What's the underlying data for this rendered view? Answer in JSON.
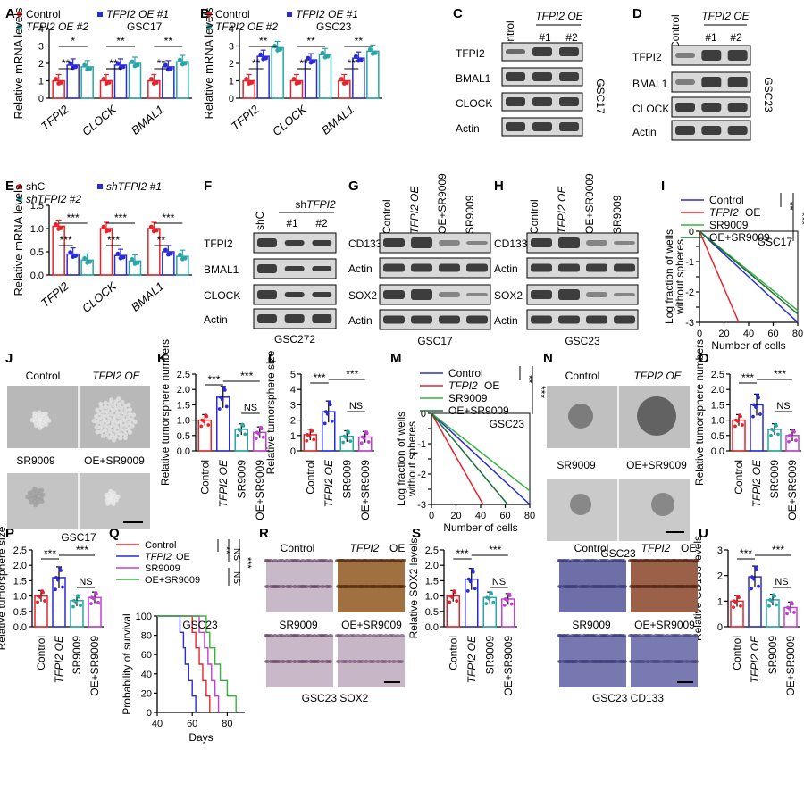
{
  "figure": {
    "panel_labels": [
      "A",
      "B",
      "C",
      "D",
      "E",
      "F",
      "G",
      "H",
      "I",
      "J",
      "K",
      "L",
      "M",
      "N",
      "O",
      "P",
      "Q",
      "R",
      "S",
      "T",
      "U"
    ],
    "colors": {
      "control": "#e8222a",
      "oe1": "#2a2ad6",
      "oe2": "#2aa6a6",
      "blue": "#2a2ad6",
      "red": "#e8222a",
      "green": "#34b33a",
      "darkgreen": "#1e6e3a",
      "purple": "#c040d0",
      "teal": "#2aa6a6"
    }
  },
  "text": {
    "gsc17": "GSC17",
    "gsc23": "GSC23",
    "gsc272": "GSC272",
    "control": "Control",
    "tfpi2oe": "TFPI2 OE",
    "tfpi2": "TFPI2",
    "oe": "OE",
    "oe1": "TFPI2 OE #1",
    "oe2": "TFPI2 OE #2",
    "sh1": "shTFPI2 #1",
    "sh2": "shTFPI2 #2",
    "shc": "shC",
    "shtfpi2": "shTFPI2",
    "num1": "#1",
    "num2": "#2",
    "bmal1": "BMAL1",
    "clock": "CLOCK",
    "actin": "Actin",
    "cd133": "CD133",
    "sox2": "SOX2",
    "sr9009": "SR9009",
    "oesr": "OE+SR9009",
    "rel_mrna": "Relative mRNA levels",
    "log_frac": "Log fraction of wells",
    "without_spheres": "without spheres",
    "num_cells": "Number of cells",
    "rel_tumor_num": "Relative tumorsphere numbers",
    "rel_tumor_size": "Relative tumorsphere size",
    "prob_surv": "Probability of survival",
    "days": "Days",
    "rel_sox2": "Relative SOX2 levels",
    "rel_cd133": "Relative CD133 levels",
    "gsc23_sox2": "GSC23 SOX2",
    "gsc23_cd133": "GSC23 CD133",
    "star1": "*",
    "star2": "**",
    "star3": "***",
    "ns": "NS"
  },
  "chart_data": [
    {
      "panel": "A",
      "type": "bar",
      "ylabel": "Relative mRNA levels",
      "ylim": [
        0,
        4
      ],
      "yticks": [
        0,
        1,
        2,
        3,
        4
      ],
      "categories": [
        "TFPI2",
        "CLOCK",
        "BMAL1"
      ],
      "series": [
        {
          "name": "Control",
          "values": [
            1.0,
            1.0,
            1.0
          ]
        },
        {
          "name": "TFPI2 OE #1",
          "values": [
            1.9,
            1.9,
            1.8
          ]
        },
        {
          "name": "TFPI2 OE #2",
          "values": [
            1.8,
            2.0,
            2.1
          ]
        }
      ],
      "sig": [
        [
          "**",
          "*"
        ],
        [
          "**",
          "**"
        ],
        [
          "**",
          "**"
        ]
      ]
    },
    {
      "panel": "B",
      "type": "bar",
      "ylabel": "Relative mRNA levels",
      "ylim": [
        0,
        4
      ],
      "yticks": [
        0,
        1,
        2,
        3,
        4
      ],
      "categories": [
        "TFPI2",
        "CLOCK",
        "BMAL1"
      ],
      "series": [
        {
          "name": "Control",
          "values": [
            1.0,
            1.0,
            1.0
          ]
        },
        {
          "name": "TFPI2 OE #1",
          "values": [
            2.4,
            2.2,
            2.3
          ]
        },
        {
          "name": "TFPI2 OE #2",
          "values": [
            2.9,
            2.5,
            2.7
          ]
        }
      ],
      "sig": [
        [
          "**",
          "**"
        ],
        [
          "**",
          "**"
        ],
        [
          "**",
          "**"
        ]
      ]
    },
    {
      "panel": "E",
      "type": "bar",
      "ylabel": "Relative mRNA levels",
      "ylim": [
        0,
        1.5
      ],
      "yticks": [
        0.0,
        0.5,
        1.0,
        1.5
      ],
      "categories": [
        "TFPI2",
        "CLOCK",
        "BMAL1"
      ],
      "series": [
        {
          "name": "shC",
          "values": [
            1.05,
            1.0,
            1.0
          ]
        },
        {
          "name": "shTFPI2 #1",
          "values": [
            0.45,
            0.42,
            0.5
          ]
        },
        {
          "name": "shTFPI2 #2",
          "values": [
            0.32,
            0.3,
            0.4
          ]
        }
      ],
      "sig": [
        [
          "***",
          "***"
        ],
        [
          "***",
          "***"
        ],
        [
          "**",
          "***"
        ]
      ]
    },
    {
      "panel": "I",
      "type": "line",
      "xlabel": "Number of cells",
      "ylabel": "Log fraction of wells without spheres",
      "xlim": [
        0,
        80
      ],
      "ylim": [
        -3,
        0
      ],
      "xticks": [
        0,
        20,
        40,
        60,
        80
      ],
      "yticks": [
        0,
        -0.5,
        -1,
        -1.5,
        -2,
        -2.5,
        -3
      ],
      "series": [
        {
          "name": "Control",
          "endx": 80
        },
        {
          "name": "TFPI2 OE",
          "endx": 32
        },
        {
          "name": "SR9009",
          "endx": 92
        },
        {
          "name": "OE+SR9009",
          "endx": 88
        }
      ]
    },
    {
      "panel": "K",
      "type": "bar",
      "ylabel": "Relative tumorsphere numbers",
      "ylim": [
        0,
        2.5
      ],
      "yticks": [
        0.0,
        0.5,
        1.0,
        1.5,
        2.0,
        2.5
      ],
      "categories": [
        "Control",
        "TFPI2 OE",
        "SR9009",
        "OE+SR9009"
      ],
      "values": [
        1.0,
        1.75,
        0.7,
        0.6
      ]
    },
    {
      "panel": "L",
      "type": "bar",
      "ylabel": "Relative tumorsphere size",
      "ylim": [
        0,
        5
      ],
      "yticks": [
        0,
        1,
        2,
        3,
        4,
        5
      ],
      "categories": [
        "Control",
        "TFPI2 OE",
        "SR9009",
        "OE+SR9009"
      ],
      "values": [
        1.05,
        2.55,
        0.95,
        0.9
      ]
    },
    {
      "panel": "M",
      "type": "line",
      "xlabel": "Number of cells",
      "ylabel": "Log fraction of wells without spheres",
      "xlim": [
        0,
        80
      ],
      "ylim": [
        -3,
        0
      ],
      "xticks": [
        0,
        20,
        40,
        60,
        80
      ],
      "yticks": [
        0,
        -0.5,
        -1,
        -1.5,
        -2,
        -2.5,
        -3
      ],
      "series": [
        {
          "name": "Control",
          "endx": 80
        },
        {
          "name": "TFPI2 OE",
          "endx": 42
        },
        {
          "name": "SR9009",
          "endx": 94
        },
        {
          "name": "OE+SR9009",
          "endx": 62
        }
      ]
    },
    {
      "panel": "O",
      "type": "bar",
      "ylabel": "Relative tumorsphere numbers",
      "ylim": [
        0,
        2.5
      ],
      "yticks": [
        0.0,
        0.5,
        1.0,
        1.5,
        2.0,
        2.5
      ],
      "categories": [
        "Control",
        "TFPI2 OE",
        "SR9009",
        "OE+SR9009"
      ],
      "values": [
        1.0,
        1.5,
        0.7,
        0.5
      ]
    },
    {
      "panel": "P",
      "type": "bar",
      "ylabel": "Relative tumorsphere size",
      "ylim": [
        0,
        2.5
      ],
      "yticks": [
        0.0,
        0.5,
        1.0,
        1.5,
        2.0,
        2.5
      ],
      "categories": [
        "Control",
        "TFPI2 OE",
        "SR9009",
        "OE+SR9009"
      ],
      "values": [
        1.0,
        1.6,
        0.85,
        0.95
      ]
    },
    {
      "panel": "Q",
      "type": "line",
      "xlabel": "Days",
      "ylabel": "Probability of survival",
      "xlim": [
        40,
        90
      ],
      "ylim": [
        0,
        100
      ],
      "xticks": [
        40,
        60,
        80
      ],
      "yticks": [
        0,
        20,
        40,
        60,
        80,
        100
      ],
      "series": [
        {
          "name": "Control",
          "values": [
            [
              40,
              100
            ],
            [
              56,
              100
            ],
            [
              60,
              83
            ],
            [
              62,
              67
            ],
            [
              64,
              50
            ],
            [
              66,
              33
            ],
            [
              68,
              17
            ],
            [
              70,
              0
            ]
          ]
        },
        {
          "name": "TFPI2 OE",
          "values": [
            [
              40,
              100
            ],
            [
              50,
              100
            ],
            [
              53,
              83
            ],
            [
              55,
              67
            ],
            [
              56,
              50
            ],
            [
              58,
              33
            ],
            [
              60,
              17
            ],
            [
              62,
              0
            ]
          ]
        },
        {
          "name": "SR9009",
          "values": [
            [
              40,
              100
            ],
            [
              61,
              100
            ],
            [
              64,
              83
            ],
            [
              67,
              67
            ],
            [
              69,
              50
            ],
            [
              71,
              33
            ],
            [
              73,
              17
            ],
            [
              75,
              0
            ]
          ]
        },
        {
          "name": "OE+SR9009",
          "values": [
            [
              40,
              100
            ],
            [
              66,
              100
            ],
            [
              68,
              83
            ],
            [
              70,
              67
            ],
            [
              73,
              50
            ],
            [
              76,
              33
            ],
            [
              80,
              17
            ],
            [
              85,
              0
            ]
          ]
        }
      ]
    },
    {
      "panel": "S",
      "type": "bar",
      "ylabel": "Relative SOX2 levels",
      "ylim": [
        0,
        2.5
      ],
      "yticks": [
        0.0,
        0.5,
        1.0,
        1.5,
        2.0,
        2.5
      ],
      "categories": [
        "Control",
        "TFPI2 OE",
        "SR9009",
        "OE+SR9009"
      ],
      "values": [
        1.0,
        1.55,
        0.95,
        0.9
      ]
    },
    {
      "panel": "U",
      "type": "bar",
      "ylabel": "Relative CD133 levels",
      "ylim": [
        0,
        3
      ],
      "yticks": [
        0,
        1,
        2,
        3
      ],
      "categories": [
        "Control",
        "TFPI2 OE",
        "SR9009",
        "OE+SR9009"
      ],
      "values": [
        1.0,
        1.95,
        1.05,
        0.75
      ]
    }
  ]
}
